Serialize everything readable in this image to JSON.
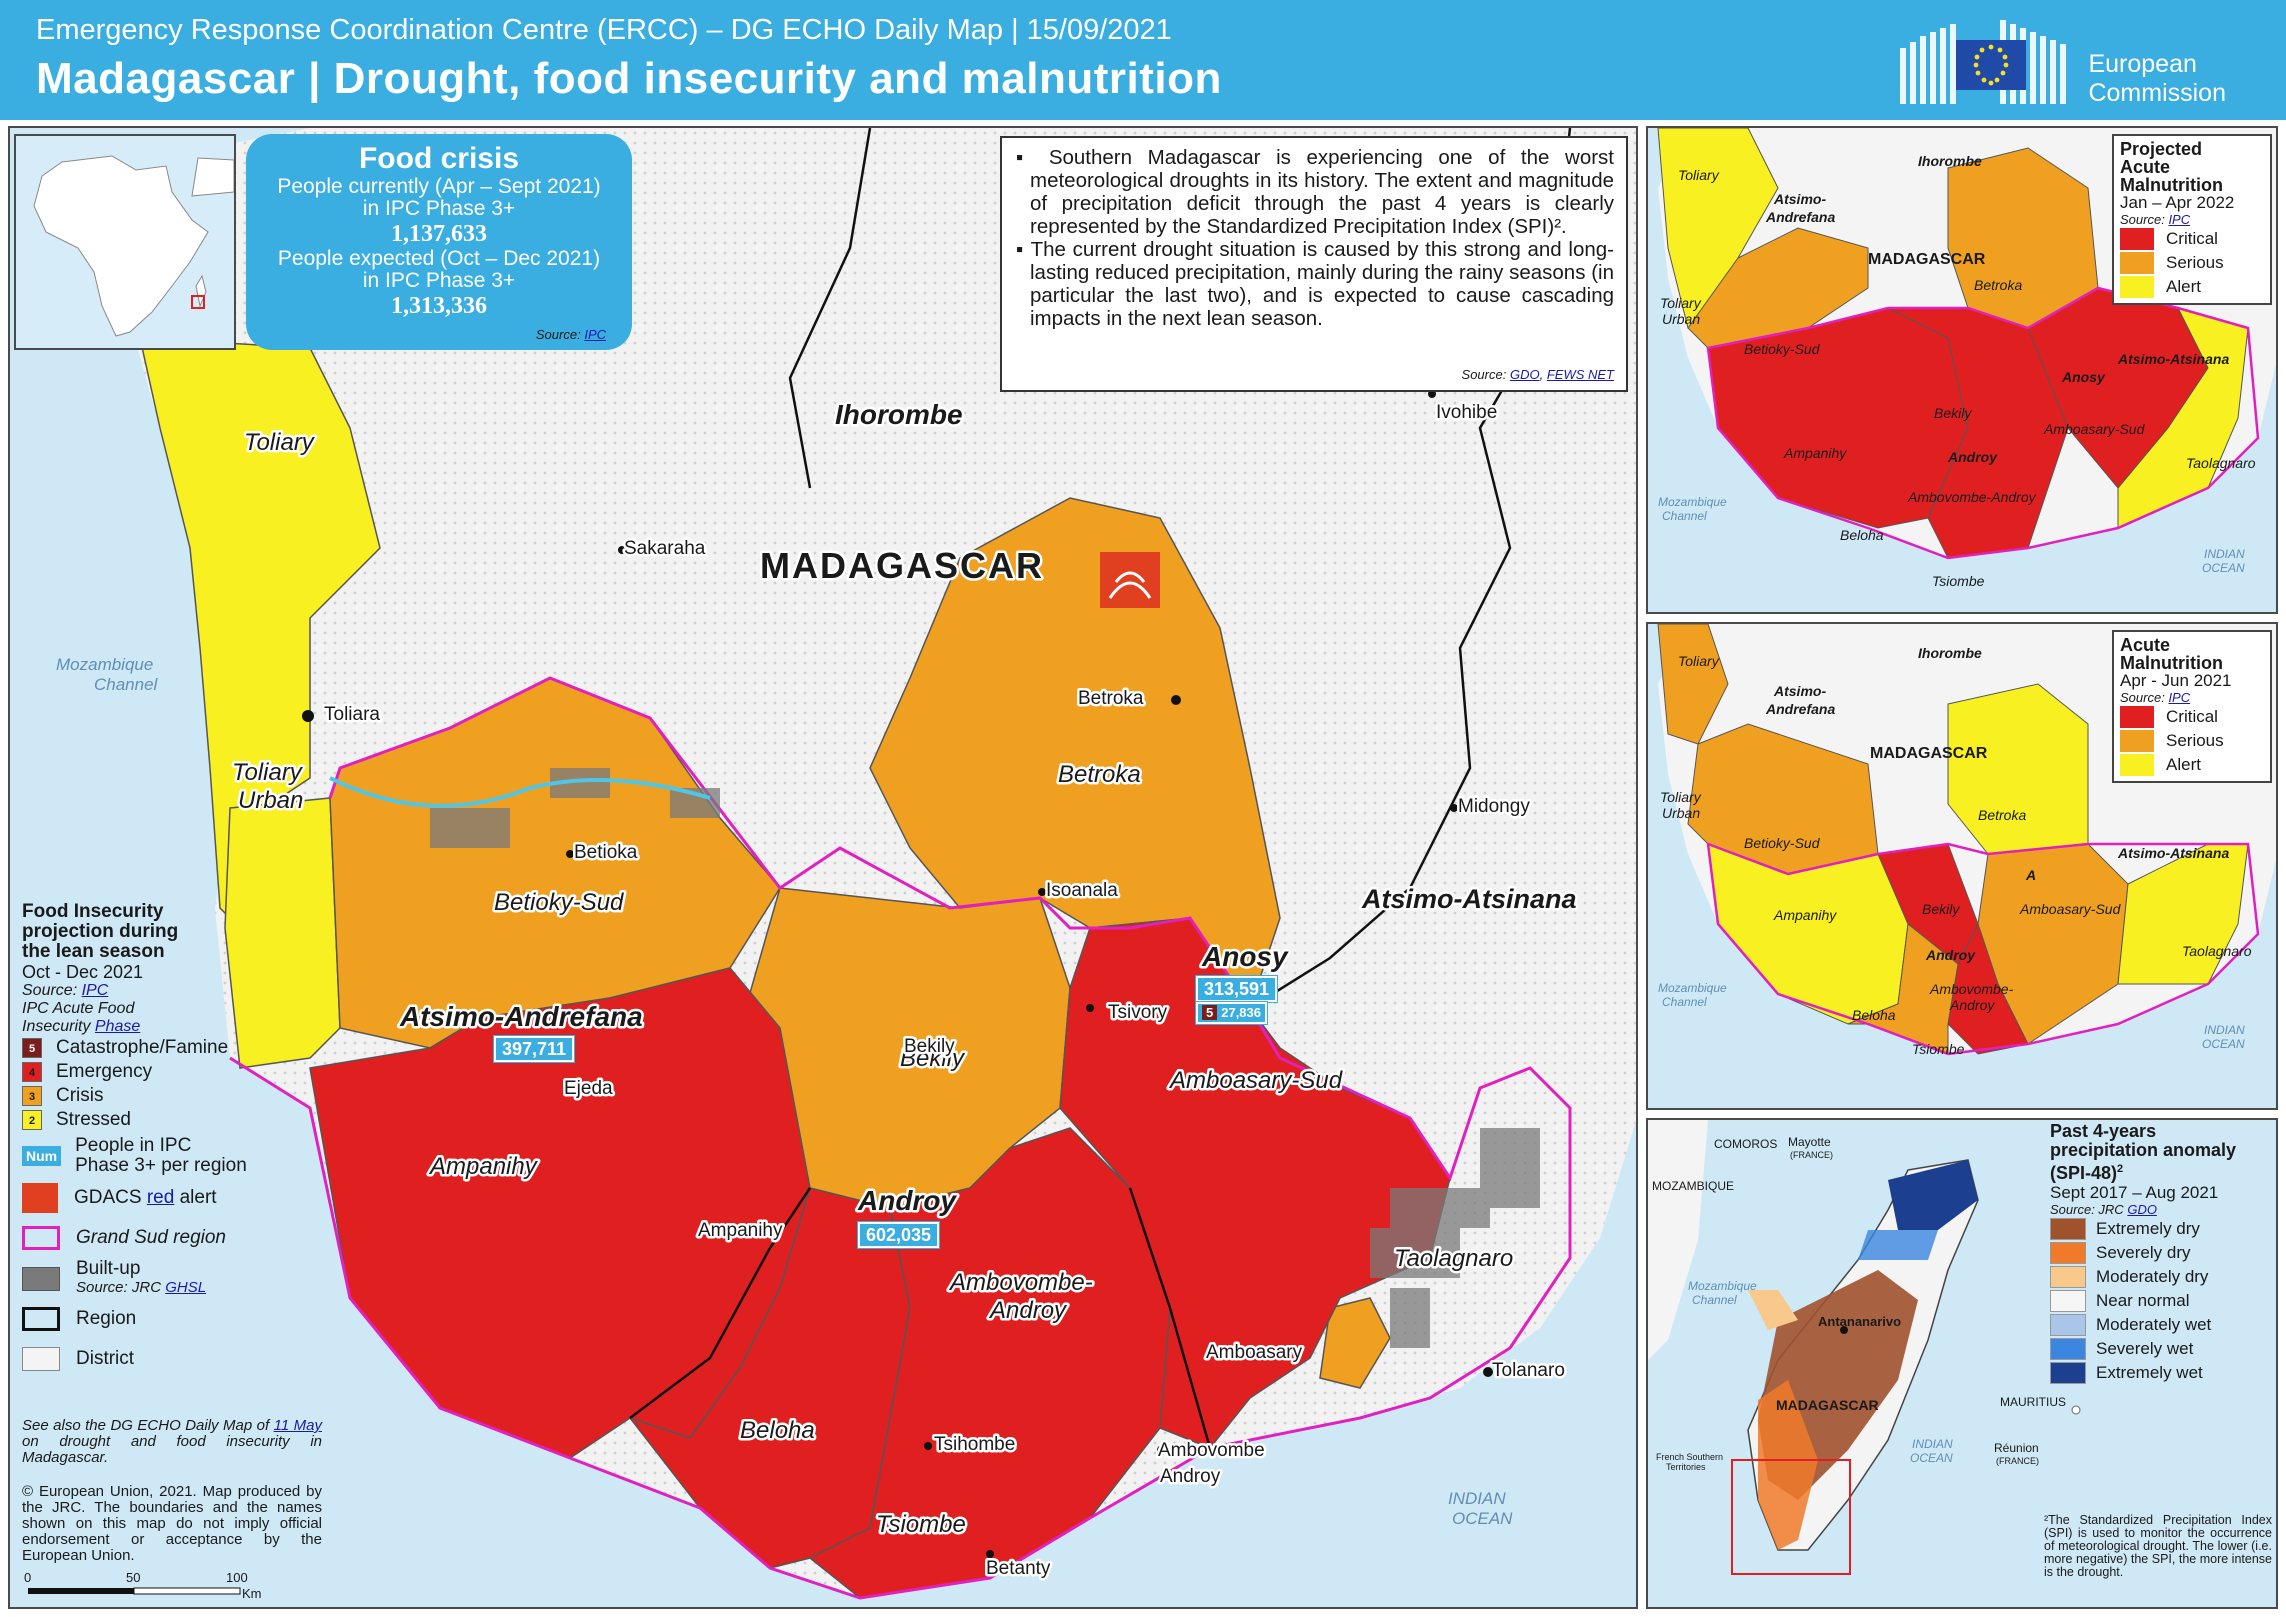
{
  "header": {
    "subtitle": "Emergency Response Coordination Centre (ERCC) – DG ECHO Daily Map | 15/09/2021",
    "title": "Madagascar  | Drought, food insecurity and malnutrition",
    "logo_line1": "European",
    "logo_line2": "Commission"
  },
  "food_crisis": {
    "heading": "Food crisis",
    "current_label_1": "People currently  (Apr – Sept 2021)",
    "current_label_2": "in IPC Phase 3+",
    "current_value": "1,137,633",
    "expected_label_1": "People expected (Oct – Dec 2021)",
    "expected_label_2": "in IPC Phase 3+",
    "expected_value": "1,313,336",
    "source_prefix": "Source:",
    "source_link": "IPC"
  },
  "textbox": {
    "bullet_1": "▪ Southern Madagascar is experiencing one of the worst meteorological droughts in its history. The extent and magnitude of precipitation deficit through the past 4 years is clearly represented by the Standardized Precipitation Index (SPI)².",
    "bullet_2": "▪ The current drought situation is caused by this strong and long-lasting reduced precipitation, mainly during the rainy seasons (in particular the last two), and is expected to cause cascading impacts in the next lean season.",
    "source_prefix": "Source:",
    "source_link_1": "GDO",
    "source_link_2": "FEWS NET"
  },
  "main_map": {
    "country_label": "MADAGASCAR",
    "water_labels": {
      "mozambique_channel_1": "Mozambique",
      "mozambique_channel_2": "Channel",
      "indian_ocean_1": "INDIAN",
      "indian_ocean_2": "OCEAN"
    },
    "region_labels": {
      "ihorombe": "Ihorombe",
      "atsimo_andrefana": "Atsimo-Andrefana",
      "androy": "Androy",
      "anosy": "Anosy",
      "atsimo_atsinana": "Atsimo-Atsinana"
    },
    "district_labels": {
      "toliary": "Toliary",
      "toliary_urban_1": "Toliary",
      "toliary_urban_2": "Urban",
      "betioky_sud": "Betioky-Sud",
      "betroka": "Betroka",
      "bekily": "Bekily",
      "ampanihy": "Ampanihy",
      "amboasary_sud": "Amboasary-Sud",
      "ambovombe_androy_1": "Ambovombe-",
      "ambovombe_androy_2": "Androy",
      "beloha": "Beloha",
      "tsiombe": "Tsiombe",
      "taolagnaro": "Taolagnaro"
    },
    "towns": {
      "ivohibe": "Ivohibe",
      "sakaraha": "Sakaraha",
      "toliara": "Toliara",
      "betioka": "Betioka",
      "betroka": "Betroka",
      "isoanala": "Isoanala",
      "midongy": "Midongy",
      "tsivory": "Tsivory",
      "bekily": "Bekily",
      "ejeda": "Ejeda",
      "ampanihy": "Ampanihy",
      "amboasary": "Amboasary",
      "tolanaro": "Tolanaro",
      "tsihombe": "Tsihombe",
      "ambovombe_1": "Ambovombe",
      "ambovombe_2": "Androy",
      "betanty": "Betanty"
    },
    "people_counts": {
      "atsimo_andrefana": "397,711",
      "androy": "602,035",
      "anosy": "313,591",
      "anosy_phase5_count": "27,836",
      "anosy_phase5_label": "5"
    },
    "scale": {
      "tick_0": "0",
      "tick_50": "50",
      "tick_100": "100",
      "unit": "Km"
    }
  },
  "legend": {
    "title_1": "Food Insecurity",
    "title_2": "projection during",
    "title_3": "the lean season",
    "period": "Oct - Dec 2021",
    "source_prefix": "Source:",
    "source_link": "IPC",
    "ipc_label_1": "IPC Acute Food",
    "ipc_label_2": "Insecurity",
    "ipc_link": "Phase",
    "phases": [
      {
        "num": "5",
        "label": "Catastrophe/Famine",
        "color": "#7a1d1d"
      },
      {
        "num": "4",
        "label": "Emergency",
        "color": "#e02020"
      },
      {
        "num": "3",
        "label": "Crisis",
        "color": "#f0a020"
      },
      {
        "num": "2",
        "label": "Stressed",
        "color": "#f8f020"
      }
    ],
    "num_badge": "Num",
    "people_label_1": "People in IPC",
    "people_label_2": "Phase 3+ per region",
    "gdacs_label": "GDACS",
    "gdacs_link": "red",
    "gdacs_suffix": "alert",
    "grand_sud": "Grand Sud region",
    "builtup": "Built-up",
    "builtup_source_prefix": "Source: JRC",
    "builtup_source_link": "GHSL",
    "region": "Region",
    "district": "District",
    "note_1": "See also the DG ECHO Daily Map of",
    "note_link": "11 May",
    "note_2": "on drought and food insecurity in Madagascar.",
    "copyright": "© European Union, 2021. Map produced by the JRC. The boundaries and the names shown on this map do not imply official endorsement or acceptance by the European Union."
  },
  "inset_a": {
    "title_1": "Projected",
    "title_2": "Acute",
    "title_3": "Malnutrition",
    "period": "Jan – Apr 2022",
    "source_prefix": "Source:",
    "source_link": "IPC",
    "classes": [
      {
        "label": "Critical",
        "color": "#e02020"
      },
      {
        "label": "Serious",
        "color": "#f0a020"
      },
      {
        "label": "Alert",
        "color": "#f8f020"
      }
    ],
    "labels": {
      "toliary": "Toliary",
      "ihorombe": "Ihorombe",
      "atsimo_andrefana_1": "Atsimo-",
      "atsimo_andrefana_2": "Andrefana",
      "madagascar": "MADAGASCAR",
      "betroka": "Betroka",
      "toliary_urban_1": "Toliary",
      "toliary_urban_2": "Urban",
      "betioky_sud": "Betioky-Sud",
      "atsimo_atsinana": "Atsimo-Atsinana",
      "anosy": "Anosy",
      "bekily": "Bekily",
      "ampanihy": "Ampanihy",
      "androy": "Androy",
      "amboasary_sud": "Amboasary-Sud",
      "taolagnaro": "Taolagnaro",
      "mozambique_channel_1": "Mozambique",
      "mozambique_channel_2": "Channel",
      "ambovombe_androy": "Ambovombe-Androy",
      "beloha": "Beloha",
      "tsiombe": "Tsiombe",
      "indian_ocean_1": "INDIAN",
      "indian_ocean_2": "OCEAN"
    }
  },
  "inset_b": {
    "title_1": "Acute",
    "title_2": "Malnutrition",
    "period": "Apr - Jun 2021",
    "source_prefix": "Source:",
    "source_link": "IPC",
    "classes": [
      {
        "label": "Critical",
        "color": "#e02020"
      },
      {
        "label": "Serious",
        "color": "#f0a020"
      },
      {
        "label": "Alert",
        "color": "#f8f020"
      }
    ],
    "labels": {
      "toliary": "Toliary",
      "ihorombe": "Ihorombe",
      "atsimo_andrefana_1": "Atsimo-",
      "atsimo_andrefana_2": "Andrefana",
      "madagascar": "MADAGASCAR",
      "betroka": "Betroka",
      "toliary_urban_1": "Toliary",
      "toliary_urban_2": "Urban",
      "betioky_sud": "Betioky-Sud",
      "atsimo_atsinana": "Atsimo-Atsinana",
      "a_label": "A",
      "bekily": "Bekily",
      "ampanihy": "Ampanihy",
      "amboasary_sud": "Amboasary-Sud",
      "androy": "Androy",
      "taolagnaro": "Taolagnaro",
      "ambovombe_androy_1": "Ambovombe-",
      "ambovombe_androy_2": "Androy",
      "mozambique_channel_1": "Mozambique",
      "mozambique_channel_2": "Channel",
      "beloha": "Beloha",
      "tsiombe": "Tsiombe",
      "indian_ocean_1": "INDIAN",
      "indian_ocean_2": "OCEAN"
    }
  },
  "inset_c": {
    "title_1": "Past 4-years",
    "title_2": "precipitation anomaly",
    "title_3": "(SPI-48)",
    "title_sup": "2",
    "period": "Sept 2017 – Aug 2021",
    "source_prefix": "Source: JRC",
    "source_link": "GDO",
    "classes": [
      {
        "label": "Extremely dry",
        "color": "#a0522d"
      },
      {
        "label": "Severely dry",
        "color": "#f07a2a"
      },
      {
        "label": "Moderately dry",
        "color": "#f8c98a"
      },
      {
        "label": "Near normal",
        "color": "#f6f6f6"
      },
      {
        "label": "Moderately wet",
        "color": "#a9c6e8"
      },
      {
        "label": "Severely wet",
        "color": "#3a86e0"
      },
      {
        "label": "Extremely wet",
        "color": "#1c3f8f"
      }
    ],
    "labels": {
      "comoros": "COMOROS",
      "mayotte": "Mayotte",
      "mayotte_france": "(FRANCE)",
      "mozambique": "MOZAMBIQUE",
      "mozambique_channel_1": "Mozambique",
      "mozambique_channel_2": "Channel",
      "antananarivo": "Antananarivo",
      "madagascar": "MADAGASCAR",
      "indian_ocean_1": "INDIAN",
      "indian_ocean_2": "OCEAN",
      "mauritius": "MAURITIUS",
      "reunion": "Réunion",
      "reunion_france": "(FRANCE)",
      "french_southern_1": "French Southern",
      "french_southern_2": "Territories"
    },
    "note": "²The Standardized Precipitation Index (SPI) is used to monitor the occurrence of meteorological drought. The lower (i.e. more negative) the SPI, the more intense is the drought."
  },
  "colors": {
    "brand_blue": "#3aaee0",
    "emergency": "#e02020",
    "crisis": "#f0a020",
    "stressed": "#f8f020",
    "catastrophe": "#7a1d1d",
    "grand_sud": "#e020c0",
    "sea": "#cfe8f6"
  }
}
